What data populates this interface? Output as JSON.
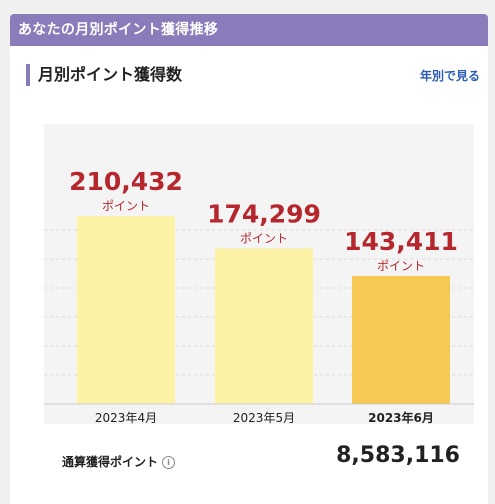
{
  "banner": {
    "title": "あなたの月別ポイント獲得推移"
  },
  "section": {
    "title": "月別ポイント獲得数",
    "yearly_link": "年別で見る"
  },
  "colors": {
    "banner": "#8a7cbb",
    "bar": "#fbf2a5",
    "bar_current": "#f6c954",
    "value_text": "#b5272d",
    "link": "#2a5bb5"
  },
  "chart_data": {
    "type": "bar",
    "categories": [
      "2023年4月",
      "2023年5月",
      "2023年6月"
    ],
    "values": [
      210432,
      174299,
      143411
    ],
    "value_labels": [
      "210,432",
      "174,299",
      "143,411"
    ],
    "unit_label": "ポイント",
    "highlight_index": 2,
    "ylim": [
      0,
      280000
    ],
    "grid": true
  },
  "summary": {
    "label": "通算獲得ポイント",
    "info_icon": "i",
    "total": "8,583,116"
  }
}
